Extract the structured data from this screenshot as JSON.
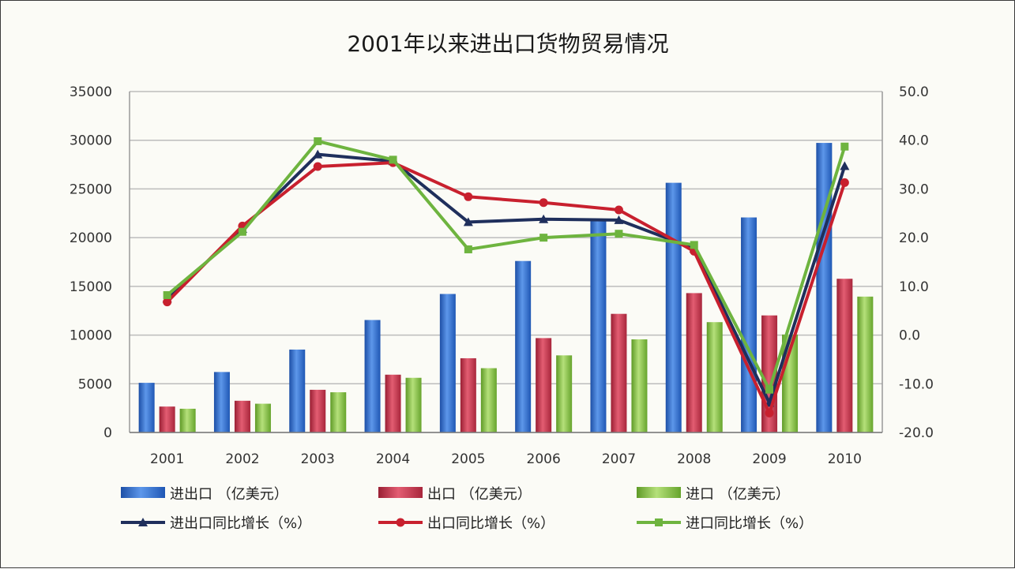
{
  "chart_data": {
    "type": "bar",
    "title": "2001年以来进出口货物贸易情况",
    "categories": [
      "2001",
      "2002",
      "2003",
      "2004",
      "2005",
      "2006",
      "2007",
      "2008",
      "2009",
      "2010"
    ],
    "y_left": {
      "min": 0,
      "max": 35000,
      "step": 5000,
      "ticks": [
        "0",
        "5000",
        "10000",
        "15000",
        "20000",
        "25000",
        "30000",
        "35000"
      ]
    },
    "y_right": {
      "min": -20,
      "max": 50,
      "step": 10,
      "ticks": [
        "-20.0",
        "-10.0",
        "0.0",
        "10.0",
        "20.0",
        "30.0",
        "40.0",
        "50.0"
      ]
    },
    "grid": true,
    "legend_position": "bottom",
    "bar_series": [
      {
        "name": "进出口 （亿美元）",
        "color": "#2e6fd0",
        "values": [
          5097,
          6208,
          8510,
          11546,
          14219,
          17604,
          21737,
          25633,
          22075,
          29728
        ]
      },
      {
        "name": "出口 （亿美元）",
        "color": "#c8344a",
        "values": [
          2661,
          3256,
          4382,
          5933,
          7620,
          9689,
          12178,
          14307,
          12017,
          15779
        ]
      },
      {
        "name": "进口 （亿美元）",
        "color": "#8cc63e",
        "values": [
          2436,
          2952,
          4128,
          5612,
          6600,
          7915,
          9559,
          11326,
          10056,
          13948
        ]
      }
    ],
    "line_series": [
      {
        "name": "进出口同比增长（%）",
        "color": "#1f2f5c",
        "marker": "triangle",
        "values": [
          7.5,
          21.8,
          37.1,
          35.7,
          23.2,
          23.8,
          23.6,
          17.8,
          -13.9,
          34.7
        ]
      },
      {
        "name": "出口同比增长（%）",
        "color": "#c8202e",
        "marker": "circle",
        "values": [
          6.8,
          22.4,
          34.6,
          35.4,
          28.4,
          27.2,
          25.7,
          17.2,
          -16.0,
          31.3
        ]
      },
      {
        "name": "进口同比增长（%）",
        "color": "#6eb43f",
        "marker": "square",
        "values": [
          8.2,
          21.2,
          39.8,
          36.0,
          17.6,
          20.0,
          20.8,
          18.5,
          -11.2,
          38.7
        ]
      }
    ]
  }
}
